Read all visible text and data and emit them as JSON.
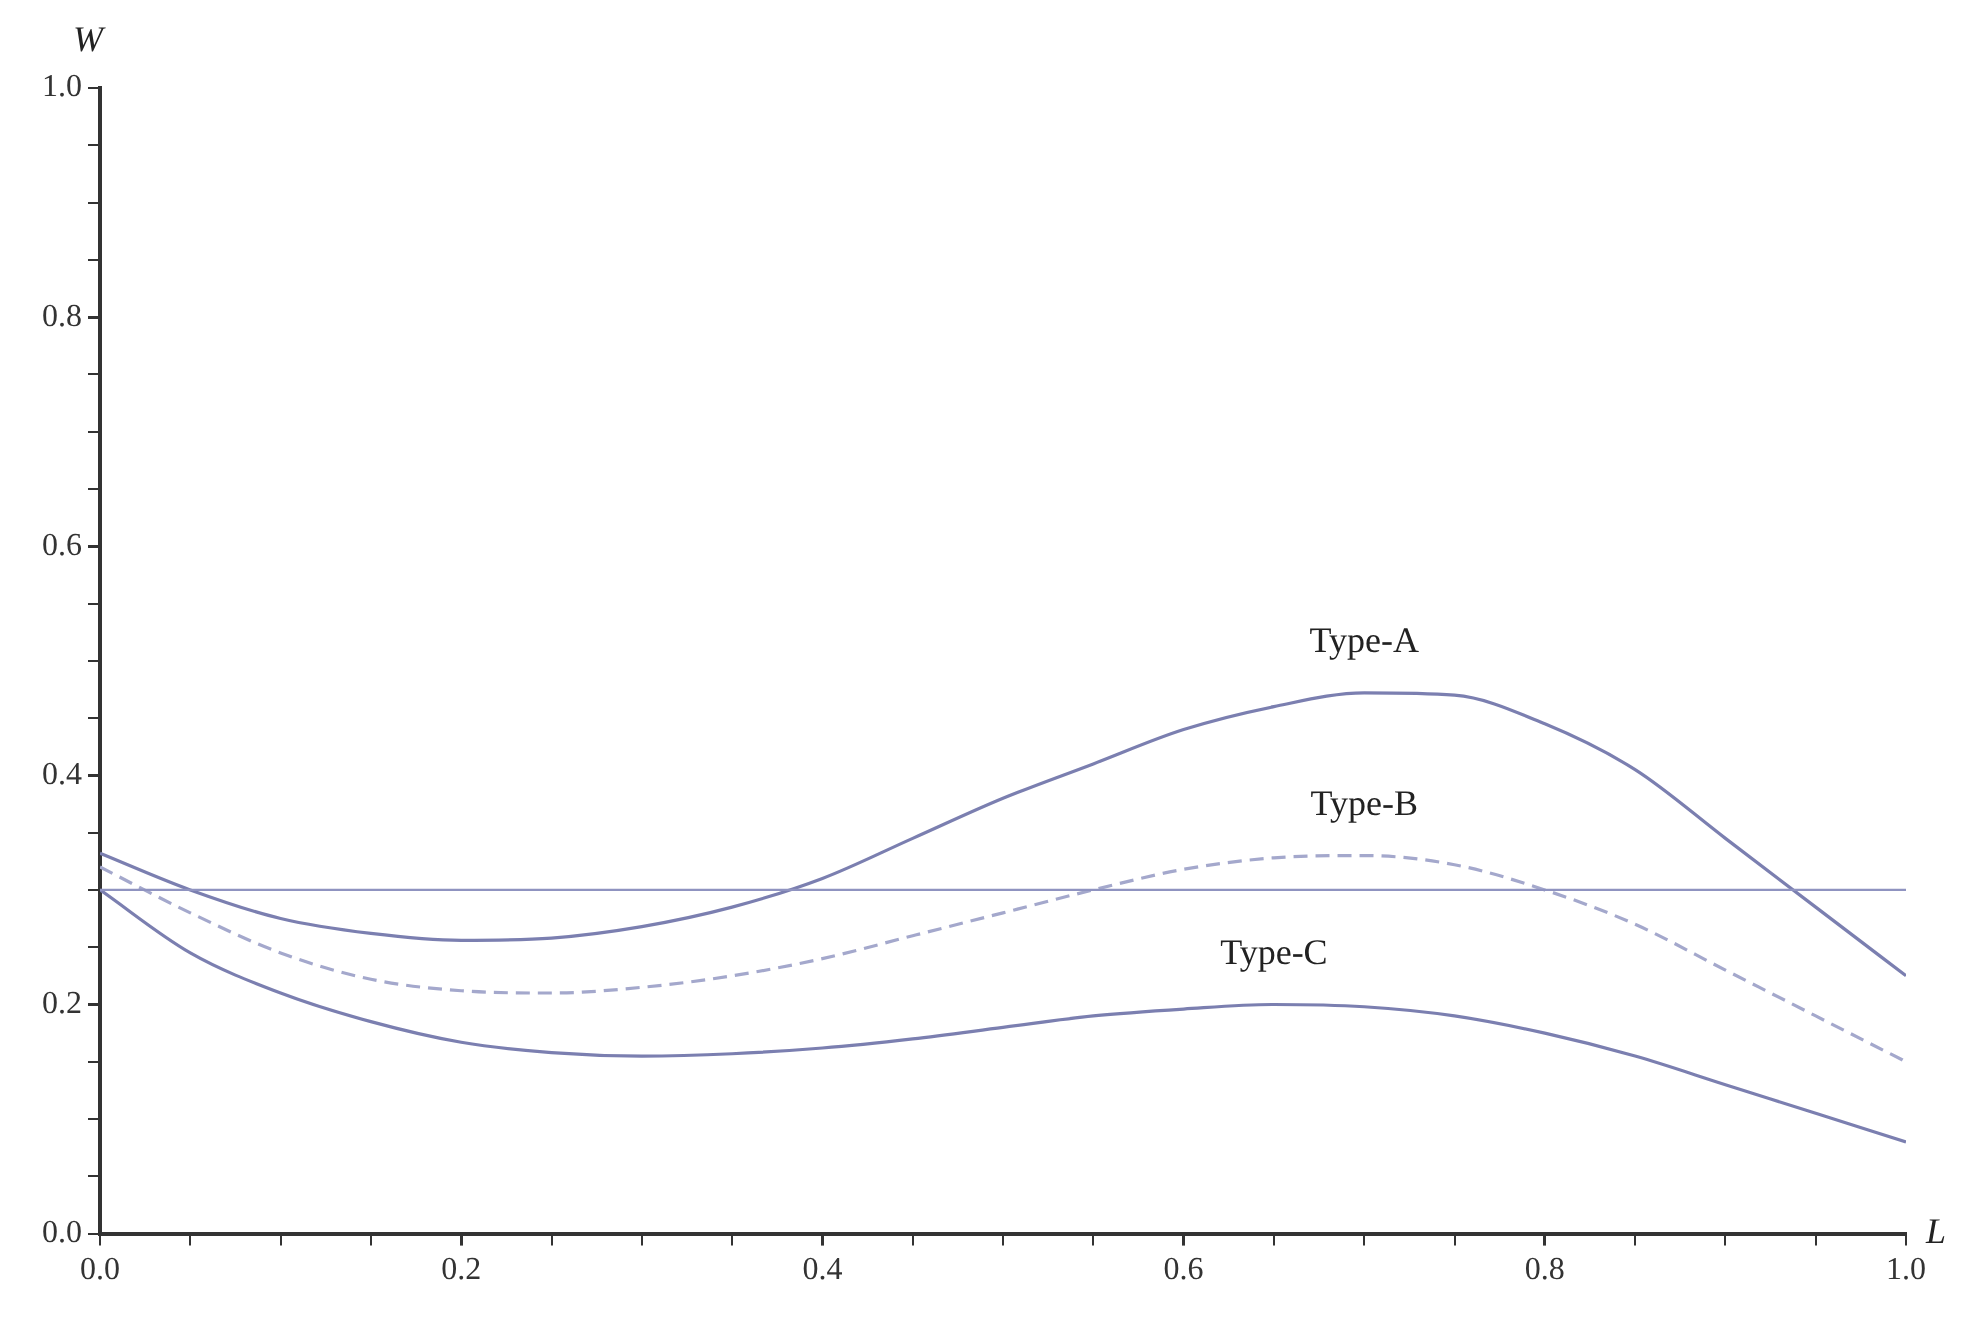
{
  "chart_data": {
    "type": "line",
    "xlabel": "L",
    "ylabel": "W",
    "legend": false,
    "grid": false,
    "marker": "none",
    "xlim": [
      0,
      1
    ],
    "ylim": [
      0,
      1
    ],
    "xticks": [
      {
        "value": 0,
        "label": "0.0"
      },
      {
        "value": 0.05,
        "label": null
      },
      {
        "value": 0.1,
        "label": null
      },
      {
        "value": 0.15,
        "label": null
      },
      0.2,
      {
        "value": 0.25,
        "label": null
      },
      {
        "value": 0.3,
        "label": null
      },
      {
        "value": 0.35,
        "label": null
      },
      0.4,
      {
        "value": 0.45,
        "label": null
      },
      {
        "value": 0.5,
        "label": null
      },
      {
        "value": 0.55,
        "label": null
      },
      0.6,
      {
        "value": 0.65,
        "label": null
      },
      {
        "value": 0.7,
        "label": null
      },
      {
        "value": 0.75,
        "label": null
      },
      0.8,
      {
        "value": 0.85,
        "label": null
      },
      {
        "value": 0.9,
        "label": null
      },
      {
        "value": 0.95,
        "label": null
      },
      {
        "value": 1,
        "label": "1.0"
      }
    ],
    "yticks": [
      {
        "value": 0,
        "label": "0.0"
      },
      {
        "value": 0.05,
        "label": null
      },
      {
        "value": 0.1,
        "label": null
      },
      {
        "value": 0.15,
        "label": null
      },
      0.2,
      {
        "value": 0.25,
        "label": null
      },
      {
        "value": 0.3,
        "label": null
      },
      {
        "value": 0.35,
        "label": null
      },
      0.4,
      {
        "value": 0.45,
        "label": null
      },
      {
        "value": 0.5,
        "label": null
      },
      {
        "value": 0.55,
        "label": null
      },
      0.6,
      {
        "value": 0.65,
        "label": null
      },
      {
        "value": 0.7,
        "label": null
      },
      {
        "value": 0.75,
        "label": null
      },
      0.8,
      {
        "value": 0.85,
        "label": null
      },
      {
        "value": 0.9,
        "label": null
      },
      {
        "value": 0.95,
        "label": null
      },
      {
        "value": 1,
        "label": "1.0"
      }
    ],
    "x": [
      0,
      0.05,
      0.1,
      0.15,
      0.2,
      0.25,
      0.3,
      0.35,
      0.4,
      0.45,
      0.5,
      0.55,
      0.6,
      0.65,
      0.7,
      0.75,
      0.8,
      0.85,
      0.9,
      0.95,
      1.0
    ],
    "series": [
      {
        "name": "Type-A",
        "color": "#7b7fb0",
        "line_style": "solid",
        "values": [
          0.332,
          0.3,
          0.275,
          0.262,
          0.256,
          0.258,
          0.268,
          0.285,
          0.31,
          0.345,
          0.38,
          0.41,
          0.44,
          0.46,
          0.472,
          0.47,
          0.445,
          0.405,
          0.345,
          0.285,
          0.225
        ]
      },
      {
        "name": "Type-B",
        "color": "#a4a8cc",
        "line_style": "dashed",
        "values": [
          0.32,
          0.28,
          0.245,
          0.222,
          0.212,
          0.21,
          0.215,
          0.225,
          0.24,
          0.26,
          0.28,
          0.3,
          0.318,
          0.328,
          0.33,
          0.322,
          0.3,
          0.27,
          0.23,
          0.19,
          0.15
        ]
      },
      {
        "name": "Type-C",
        "color": "#7b7fb0",
        "line_style": "solid",
        "values": [
          0.3,
          0.245,
          0.21,
          0.185,
          0.167,
          0.158,
          0.155,
          0.157,
          0.162,
          0.17,
          0.18,
          0.19,
          0.196,
          0.2,
          0.198,
          0.19,
          0.175,
          0.155,
          0.13,
          0.105,
          0.08
        ]
      }
    ],
    "ref_lines": [
      {
        "axis": "y",
        "value": 0.3,
        "color": "#8f93c0"
      }
    ]
  }
}
